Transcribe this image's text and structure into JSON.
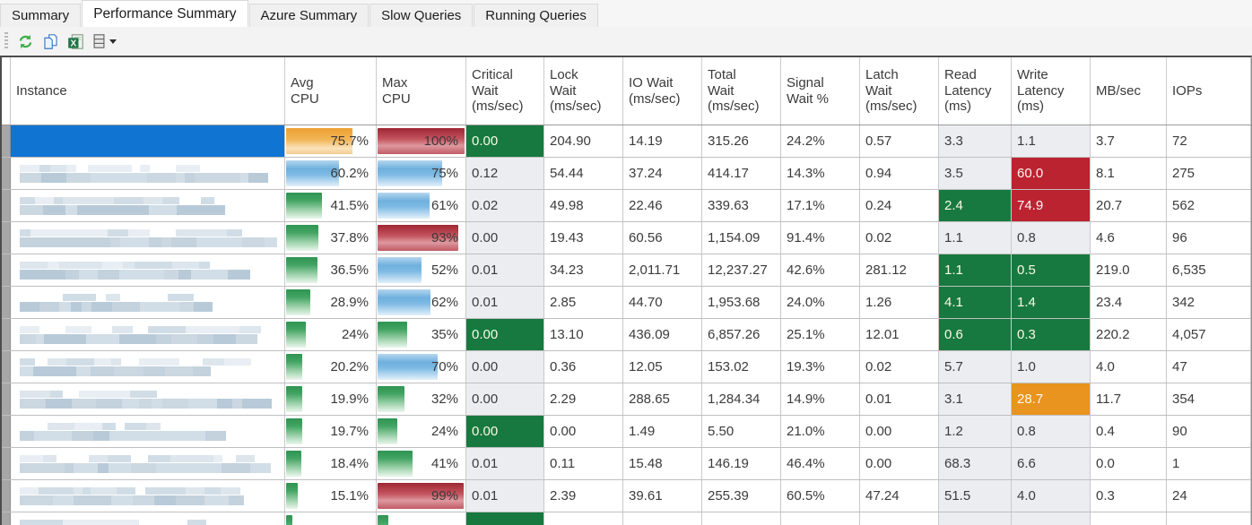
{
  "tabs": [
    {
      "label": "Summary",
      "active": false
    },
    {
      "label": "Performance Summary",
      "active": true
    },
    {
      "label": "Azure Summary",
      "active": false
    },
    {
      "label": "Slow Queries",
      "active": false
    },
    {
      "label": "Running Queries",
      "active": false
    }
  ],
  "toolbar": {
    "buttons": [
      {
        "name": "refresh",
        "icon": "refresh-icon"
      },
      {
        "name": "copy",
        "icon": "copy-icon"
      },
      {
        "name": "export-excel",
        "icon": "excel-icon"
      },
      {
        "name": "column-chooser",
        "icon": "columns-icon",
        "has_dropdown": true
      }
    ]
  },
  "colors": {
    "selection_blue": "#0f74d2",
    "cell_green": "#17793f",
    "cell_red": "#bc2330",
    "cell_orange": "#e8941f",
    "shaded_column": "#ebedf1",
    "bar_green": "#2e9452",
    "bar_blue": "#6fb0de",
    "bar_red": "#b03a46",
    "bar_orange": "#eda032"
  },
  "table": {
    "columns": [
      {
        "key": "instance",
        "label": "Instance"
      },
      {
        "key": "avg_cpu",
        "label": "Avg\nCPU"
      },
      {
        "key": "max_cpu",
        "label": "Max\nCPU"
      },
      {
        "key": "critical_wait",
        "label": "Critical\nWait\n(ms/sec)"
      },
      {
        "key": "lock_wait",
        "label": "Lock\nWait\n(ms/sec)"
      },
      {
        "key": "io_wait",
        "label": "IO Wait\n(ms/sec)"
      },
      {
        "key": "total_wait",
        "label": "Total\nWait\n(ms/sec)"
      },
      {
        "key": "signal_wait",
        "label": "Signal\nWait %"
      },
      {
        "key": "latch_wait",
        "label": "Latch\nWait\n(ms/sec)"
      },
      {
        "key": "read_latency",
        "label": "Read\nLatency\n(ms)"
      },
      {
        "key": "write_latency",
        "label": "Write\nLatency\n(ms)"
      },
      {
        "key": "mb_sec",
        "label": "MB/sec"
      },
      {
        "key": "iops",
        "label": "IOPs"
      }
    ],
    "rows": [
      {
        "instance": {
          "redacted": true
        },
        "selected": true,
        "avg_cpu": {
          "text": "75.7%",
          "value": 75.7,
          "color": "orange"
        },
        "max_cpu": {
          "text": "100%",
          "value": 100,
          "color": "red"
        },
        "critical_wait": {
          "text": "0.00",
          "highlight": "green"
        },
        "lock_wait": "204.90",
        "io_wait": "14.19",
        "total_wait": "315.26",
        "signal_wait": "24.2%",
        "latch_wait": "0.57",
        "read_latency": "3.3",
        "write_latency": "1.1",
        "mb_sec": "3.7",
        "iops": "72"
      },
      {
        "instance": {
          "redacted": true
        },
        "selected": false,
        "avg_cpu": {
          "text": "60.2%",
          "value": 60.2,
          "color": "blue"
        },
        "max_cpu": {
          "text": "75%",
          "value": 75,
          "color": "blue"
        },
        "critical_wait": "0.12",
        "lock_wait": "54.44",
        "io_wait": "37.24",
        "total_wait": "414.17",
        "signal_wait": "14.3%",
        "latch_wait": "0.94",
        "read_latency": "3.5",
        "write_latency": {
          "text": "60.0",
          "highlight": "red"
        },
        "mb_sec": "8.1",
        "iops": "275"
      },
      {
        "instance": {
          "redacted": true
        },
        "selected": false,
        "avg_cpu": {
          "text": "41.5%",
          "value": 41.5,
          "color": "green"
        },
        "max_cpu": {
          "text": "61%",
          "value": 61,
          "color": "blue"
        },
        "critical_wait": "0.02",
        "lock_wait": "49.98",
        "io_wait": "22.46",
        "total_wait": "339.63",
        "signal_wait": "17.1%",
        "latch_wait": "0.24",
        "read_latency": {
          "text": "2.4",
          "highlight": "green"
        },
        "write_latency": {
          "text": "74.9",
          "highlight": "red"
        },
        "mb_sec": "20.7",
        "iops": "562"
      },
      {
        "instance": {
          "redacted": true
        },
        "selected": false,
        "avg_cpu": {
          "text": "37.8%",
          "value": 37.8,
          "color": "green"
        },
        "max_cpu": {
          "text": "93%",
          "value": 93,
          "color": "red"
        },
        "critical_wait": "0.00",
        "lock_wait": "19.43",
        "io_wait": "60.56",
        "total_wait": "1,154.09",
        "signal_wait": "91.4%",
        "latch_wait": "0.02",
        "read_latency": "1.1",
        "write_latency": "0.8",
        "mb_sec": "4.6",
        "iops": "96"
      },
      {
        "instance": {
          "redacted": true
        },
        "selected": false,
        "avg_cpu": {
          "text": "36.5%",
          "value": 36.5,
          "color": "green"
        },
        "max_cpu": {
          "text": "52%",
          "value": 52,
          "color": "blue"
        },
        "critical_wait": "0.01",
        "lock_wait": "34.23",
        "io_wait": "2,011.71",
        "total_wait": "12,237.27",
        "signal_wait": "42.6%",
        "latch_wait": "281.12",
        "read_latency": {
          "text": "1.1",
          "highlight": "green"
        },
        "write_latency": {
          "text": "0.5",
          "highlight": "green"
        },
        "mb_sec": "219.0",
        "iops": "6,535"
      },
      {
        "instance": {
          "redacted": true
        },
        "selected": false,
        "avg_cpu": {
          "text": "28.9%",
          "value": 28.9,
          "color": "green"
        },
        "max_cpu": {
          "text": "62%",
          "value": 62,
          "color": "blue"
        },
        "critical_wait": "0.01",
        "lock_wait": "2.85",
        "io_wait": "44.70",
        "total_wait": "1,953.68",
        "signal_wait": "24.0%",
        "latch_wait": "1.26",
        "read_latency": {
          "text": "4.1",
          "highlight": "green"
        },
        "write_latency": {
          "text": "1.4",
          "highlight": "green"
        },
        "mb_sec": "23.4",
        "iops": "342"
      },
      {
        "instance": {
          "redacted": true
        },
        "selected": false,
        "avg_cpu": {
          "text": "24%",
          "value": 24,
          "color": "green"
        },
        "max_cpu": {
          "text": "35%",
          "value": 35,
          "color": "green"
        },
        "critical_wait": {
          "text": "0.00",
          "highlight": "green"
        },
        "lock_wait": "13.10",
        "io_wait": "436.09",
        "total_wait": "6,857.26",
        "signal_wait": "25.1%",
        "latch_wait": "12.01",
        "read_latency": {
          "text": "0.6",
          "highlight": "green"
        },
        "write_latency": {
          "text": "0.3",
          "highlight": "green"
        },
        "mb_sec": "220.2",
        "iops": "4,057"
      },
      {
        "instance": {
          "redacted": true
        },
        "selected": false,
        "avg_cpu": {
          "text": "20.2%",
          "value": 20.2,
          "color": "green"
        },
        "max_cpu": {
          "text": "70%",
          "value": 70,
          "color": "blue"
        },
        "critical_wait": "0.00",
        "lock_wait": "0.36",
        "io_wait": "12.05",
        "total_wait": "153.02",
        "signal_wait": "19.3%",
        "latch_wait": "0.02",
        "read_latency": "5.7",
        "write_latency": "1.0",
        "mb_sec": "4.0",
        "iops": "47"
      },
      {
        "instance": {
          "redacted": true
        },
        "selected": false,
        "avg_cpu": {
          "text": "19.9%",
          "value": 19.9,
          "color": "green"
        },
        "max_cpu": {
          "text": "32%",
          "value": 32,
          "color": "green"
        },
        "critical_wait": "0.00",
        "lock_wait": "2.29",
        "io_wait": "288.65",
        "total_wait": "1,284.34",
        "signal_wait": "14.9%",
        "latch_wait": "0.01",
        "read_latency": "3.1",
        "write_latency": {
          "text": "28.7",
          "highlight": "orange"
        },
        "mb_sec": "11.7",
        "iops": "354"
      },
      {
        "instance": {
          "redacted": true
        },
        "selected": false,
        "avg_cpu": {
          "text": "19.7%",
          "value": 19.7,
          "color": "green"
        },
        "max_cpu": {
          "text": "24%",
          "value": 24,
          "color": "green"
        },
        "critical_wait": {
          "text": "0.00",
          "highlight": "green"
        },
        "lock_wait": "0.00",
        "io_wait": "1.49",
        "total_wait": "5.50",
        "signal_wait": "21.0%",
        "latch_wait": "0.00",
        "read_latency": "1.2",
        "write_latency": "0.8",
        "mb_sec": "0.4",
        "iops": "90"
      },
      {
        "instance": {
          "redacted": true
        },
        "selected": false,
        "avg_cpu": {
          "text": "18.4%",
          "value": 18.4,
          "color": "green"
        },
        "max_cpu": {
          "text": "41%",
          "value": 41,
          "color": "green"
        },
        "critical_wait": "0.01",
        "lock_wait": "0.11",
        "io_wait": "15.48",
        "total_wait": "146.19",
        "signal_wait": "46.4%",
        "latch_wait": "0.00",
        "read_latency": "68.3",
        "write_latency": "6.6",
        "mb_sec": "0.0",
        "iops": "1"
      },
      {
        "instance": {
          "redacted": true
        },
        "selected": false,
        "avg_cpu": {
          "text": "15.1%",
          "value": 15.1,
          "color": "green"
        },
        "max_cpu": {
          "text": "99%",
          "value": 99,
          "color": "red"
        },
        "critical_wait": "0.01",
        "lock_wait": "2.39",
        "io_wait": "39.61",
        "total_wait": "255.39",
        "signal_wait": "60.5%",
        "latch_wait": "47.24",
        "read_latency": "51.5",
        "write_latency": "4.0",
        "mb_sec": "0.3",
        "iops": "24"
      },
      {
        "instance": {
          "redacted": true
        },
        "selected": false,
        "avg_cpu": {
          "text": "",
          "value": 9,
          "color": "green"
        },
        "max_cpu": {
          "text": "",
          "value": 14,
          "color": "green"
        },
        "critical_wait": {
          "text": "",
          "highlight": "green"
        },
        "lock_wait": "",
        "io_wait": "",
        "total_wait": "",
        "signal_wait": "",
        "latch_wait": "",
        "read_latency": "",
        "write_latency": "",
        "mb_sec": "",
        "iops": ""
      }
    ]
  }
}
